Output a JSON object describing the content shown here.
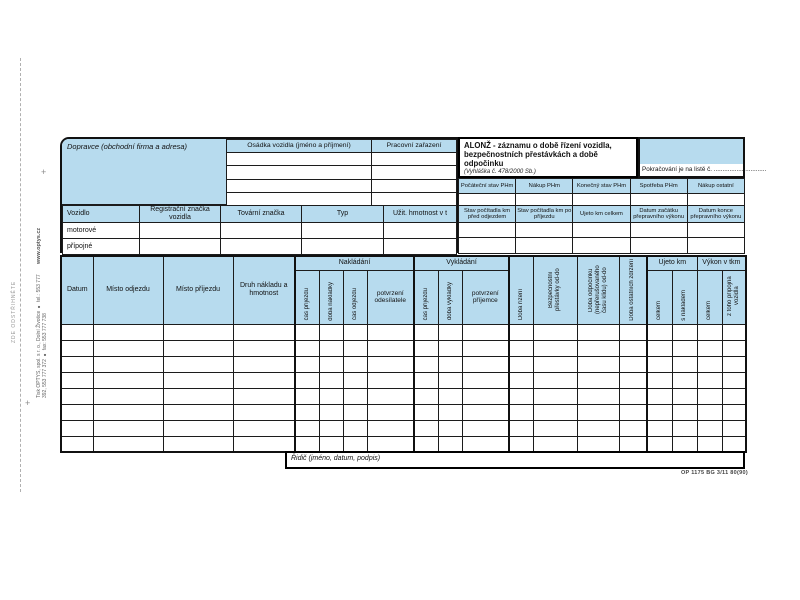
{
  "page": {
    "cut_label": "ZDE ODSTŘIHNĚTE",
    "side_print_line1": "Tisk OPTYS, spol. s r. o., Dolní Životice ● tel.: 553 777 392, 553 777 372 ● fax: 553 777 738",
    "side_print_line2": "www.optys.cz",
    "form_code": "OP 1175   BG 3/11   80(90)"
  },
  "colors": {
    "header_blue": "#b7dbee",
    "border": "#1c1c1c",
    "paper": "#ffffff"
  },
  "top": {
    "dopravce_label": "Dopravce (obchodní firma a adresa)",
    "osadka_header": "Osádka vozidla (jméno a příjmení)",
    "pracovni_header": "Pracovní zařazení",
    "vehicle_table": {
      "headers": [
        "Vozidlo",
        "Registrační značka vozidla",
        "Tovární značka",
        "Typ",
        "Užit. hmotnost v t"
      ],
      "rows": [
        "motorové",
        "přípojné"
      ]
    },
    "alonz": {
      "title_bold": "ALONŽ",
      "title_rest": " - záznamu o době řízení vozidla, bezpečnostních přestávkách a době odpočinku",
      "subtitle": "(Vyhláška č. 478/2000 Sb.)",
      "continuation_label": "Pokračování je na listě č. .............................."
    },
    "phm_table": {
      "header_row1": [
        "Počáteční stav PHm",
        "Nákup PHm",
        "Konečný stav PHm",
        "Spotřeba PHm",
        "Nákup ostatní"
      ],
      "header_row2": [
        "Stav počítadla km před odjezdem",
        "Stav počítadla km po příjezdu",
        "Ujeto km celkem",
        "Datum začátku přepravního výkonu",
        "Datum konce přepravního výkonu"
      ]
    }
  },
  "main_table": {
    "static_headers": [
      "Datum",
      "Místo odjezdu",
      "Místo příjezdu",
      "Druh nákladu a hmotnost"
    ],
    "groups": {
      "nakladani": "Nakládání",
      "vykladani": "Vykládání",
      "ujeto_km": "Ujeto km",
      "vykon_tkm": "Výkon v tkm"
    },
    "nakladani_sub": [
      "čas příjezdu",
      "doba nakládky",
      "čas odjezdu",
      "potvrzení odesílatele"
    ],
    "vykladani_sub": [
      "čas příjezdu",
      "doba vykládky",
      "potvrzení příjemce"
    ],
    "rotated": [
      "Doba řízení",
      "Bezpečnostní přestávky od-do",
      "Doba odpočinku (nepřerušovaného času klidu) od-do",
      "Doba ostatních zdržení"
    ],
    "ujeto_sub": [
      "celkem",
      "s nákladem"
    ],
    "vykon_sub": [
      "celkem",
      "z toho přípojná vozidla"
    ],
    "body_rows": 8,
    "column_count": 19
  },
  "footer": {
    "ridic_label": "Řidič (jméno, datum, podpis)"
  }
}
